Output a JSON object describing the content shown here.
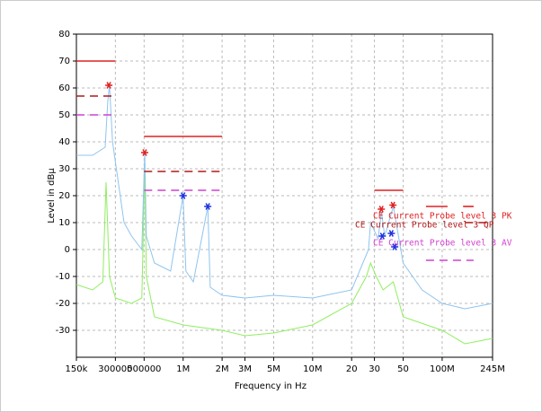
{
  "chart_data": {
    "type": "line",
    "xlabel": "Frequency in Hz",
    "ylabel": "Level in dBµ",
    "xscale": "log",
    "grid": true,
    "xlim": [
      150000,
      245000000
    ],
    "ylim": [
      -40,
      80
    ],
    "xticks": [
      {
        "value": 150000,
        "label": "150k"
      },
      300000,
      500000,
      {
        "value": 1000000,
        "label": "1M"
      },
      {
        "value": 2000000,
        "label": "2M"
      },
      {
        "value": 3000000,
        "label": "3M"
      },
      {
        "value": 5000000,
        "label": "5M"
      },
      {
        "value": 10000000,
        "label": "10M"
      },
      {
        "value": 20000000,
        "label": "20"
      },
      {
        "value": 30000000,
        "label": "30"
      },
      {
        "value": 50000000,
        "label": "50"
      },
      {
        "value": 100000000,
        "label": "100M"
      },
      {
        "value": 245000000,
        "label": "245M"
      }
    ],
    "yticks": [
      -30,
      -20,
      -10,
      0,
      10,
      20,
      30,
      40,
      50,
      60,
      70,
      80
    ],
    "series": [
      {
        "color": "#90ee60",
        "line_style": "solid",
        "x": [
          150000,
          200000,
          240000,
          254000,
          270000,
          300000,
          400000,
          480000,
          505000,
          520000,
          600000,
          1000000,
          2000000,
          3000000,
          5000000,
          10000000,
          20000000,
          26000000,
          28000000,
          31000000,
          35000000,
          42000000,
          50000000,
          100000000,
          150000000,
          245000000
        ],
        "values": [
          -13,
          -15,
          -12,
          25,
          -10,
          -18,
          -20,
          -18,
          30,
          -10,
          -25,
          -28,
          -30,
          -32,
          -31,
          -28,
          -20,
          -10,
          -5,
          -10,
          -15,
          -12,
          -25,
          -30,
          -35,
          -33
        ]
      },
      {
        "color": "#8fc4ee",
        "line_style": "solid",
        "x": [
          150000,
          200000,
          250000,
          262000,
          270000,
          285000,
          350000,
          400000,
          480000,
          505000,
          520000,
          600000,
          800000,
          1000000,
          1050000,
          1200000,
          1550000,
          1620000,
          2000000,
          3000000,
          5000000,
          10000000,
          20000000,
          27000000,
          28000000,
          32000000,
          34000000,
          36000000,
          42000000,
          50000000,
          70000000,
          100000000,
          150000000,
          245000000
        ],
        "values": [
          35,
          35,
          38,
          55,
          61,
          40,
          10,
          5,
          0,
          36,
          5,
          -5,
          -8,
          20,
          -8,
          -12,
          16,
          -14,
          -17,
          -18,
          -17,
          -18,
          -15,
          0,
          10,
          4,
          14,
          5,
          16,
          -5,
          -15,
          -20,
          -22,
          -20
        ]
      },
      {
        "name": "CE Current Probe level 3 PK",
        "color": "#e02020",
        "line_style": "solid",
        "x": [
          150000,
          300000,
          300000,
          500000,
          2000000,
          2000000,
          30000000,
          50000000,
          50000000,
          75000000,
          110000000,
          110000000,
          145000000,
          175000000
        ],
        "values": [
          70,
          70,
          null,
          42,
          42,
          null,
          22,
          22,
          null,
          16,
          16,
          null,
          16,
          16
        ]
      },
      {
        "name": "CE Current Probe level 3 QP",
        "color": "#b01818",
        "line_style": "dashed",
        "x": [
          150000,
          300000,
          300000,
          500000,
          2000000,
          2000000,
          150000000,
          245000000
        ],
        "values": [
          57,
          57,
          null,
          29,
          29,
          null,
          10,
          10
        ]
      },
      {
        "name": "CE Current Probe level 3 AV",
        "color": "#d040d0",
        "line_style": "dashed",
        "x": [
          150000,
          300000,
          300000,
          500000,
          2000000,
          2000000,
          75000000,
          175000000
        ],
        "values": [
          50,
          50,
          null,
          22,
          22,
          null,
          -4,
          -4
        ]
      }
    ],
    "markers": [
      {
        "color": "#e02020",
        "x": [
          267000,
          505000,
          33900000,
          41700000
        ],
        "values": [
          61,
          36,
          15,
          16.5
        ]
      },
      {
        "color": "#2030e0",
        "x": [
          1000000,
          1550000,
          34500000,
          40500000,
          43000000
        ],
        "values": [
          20,
          16,
          5,
          6,
          1
        ]
      }
    ]
  }
}
